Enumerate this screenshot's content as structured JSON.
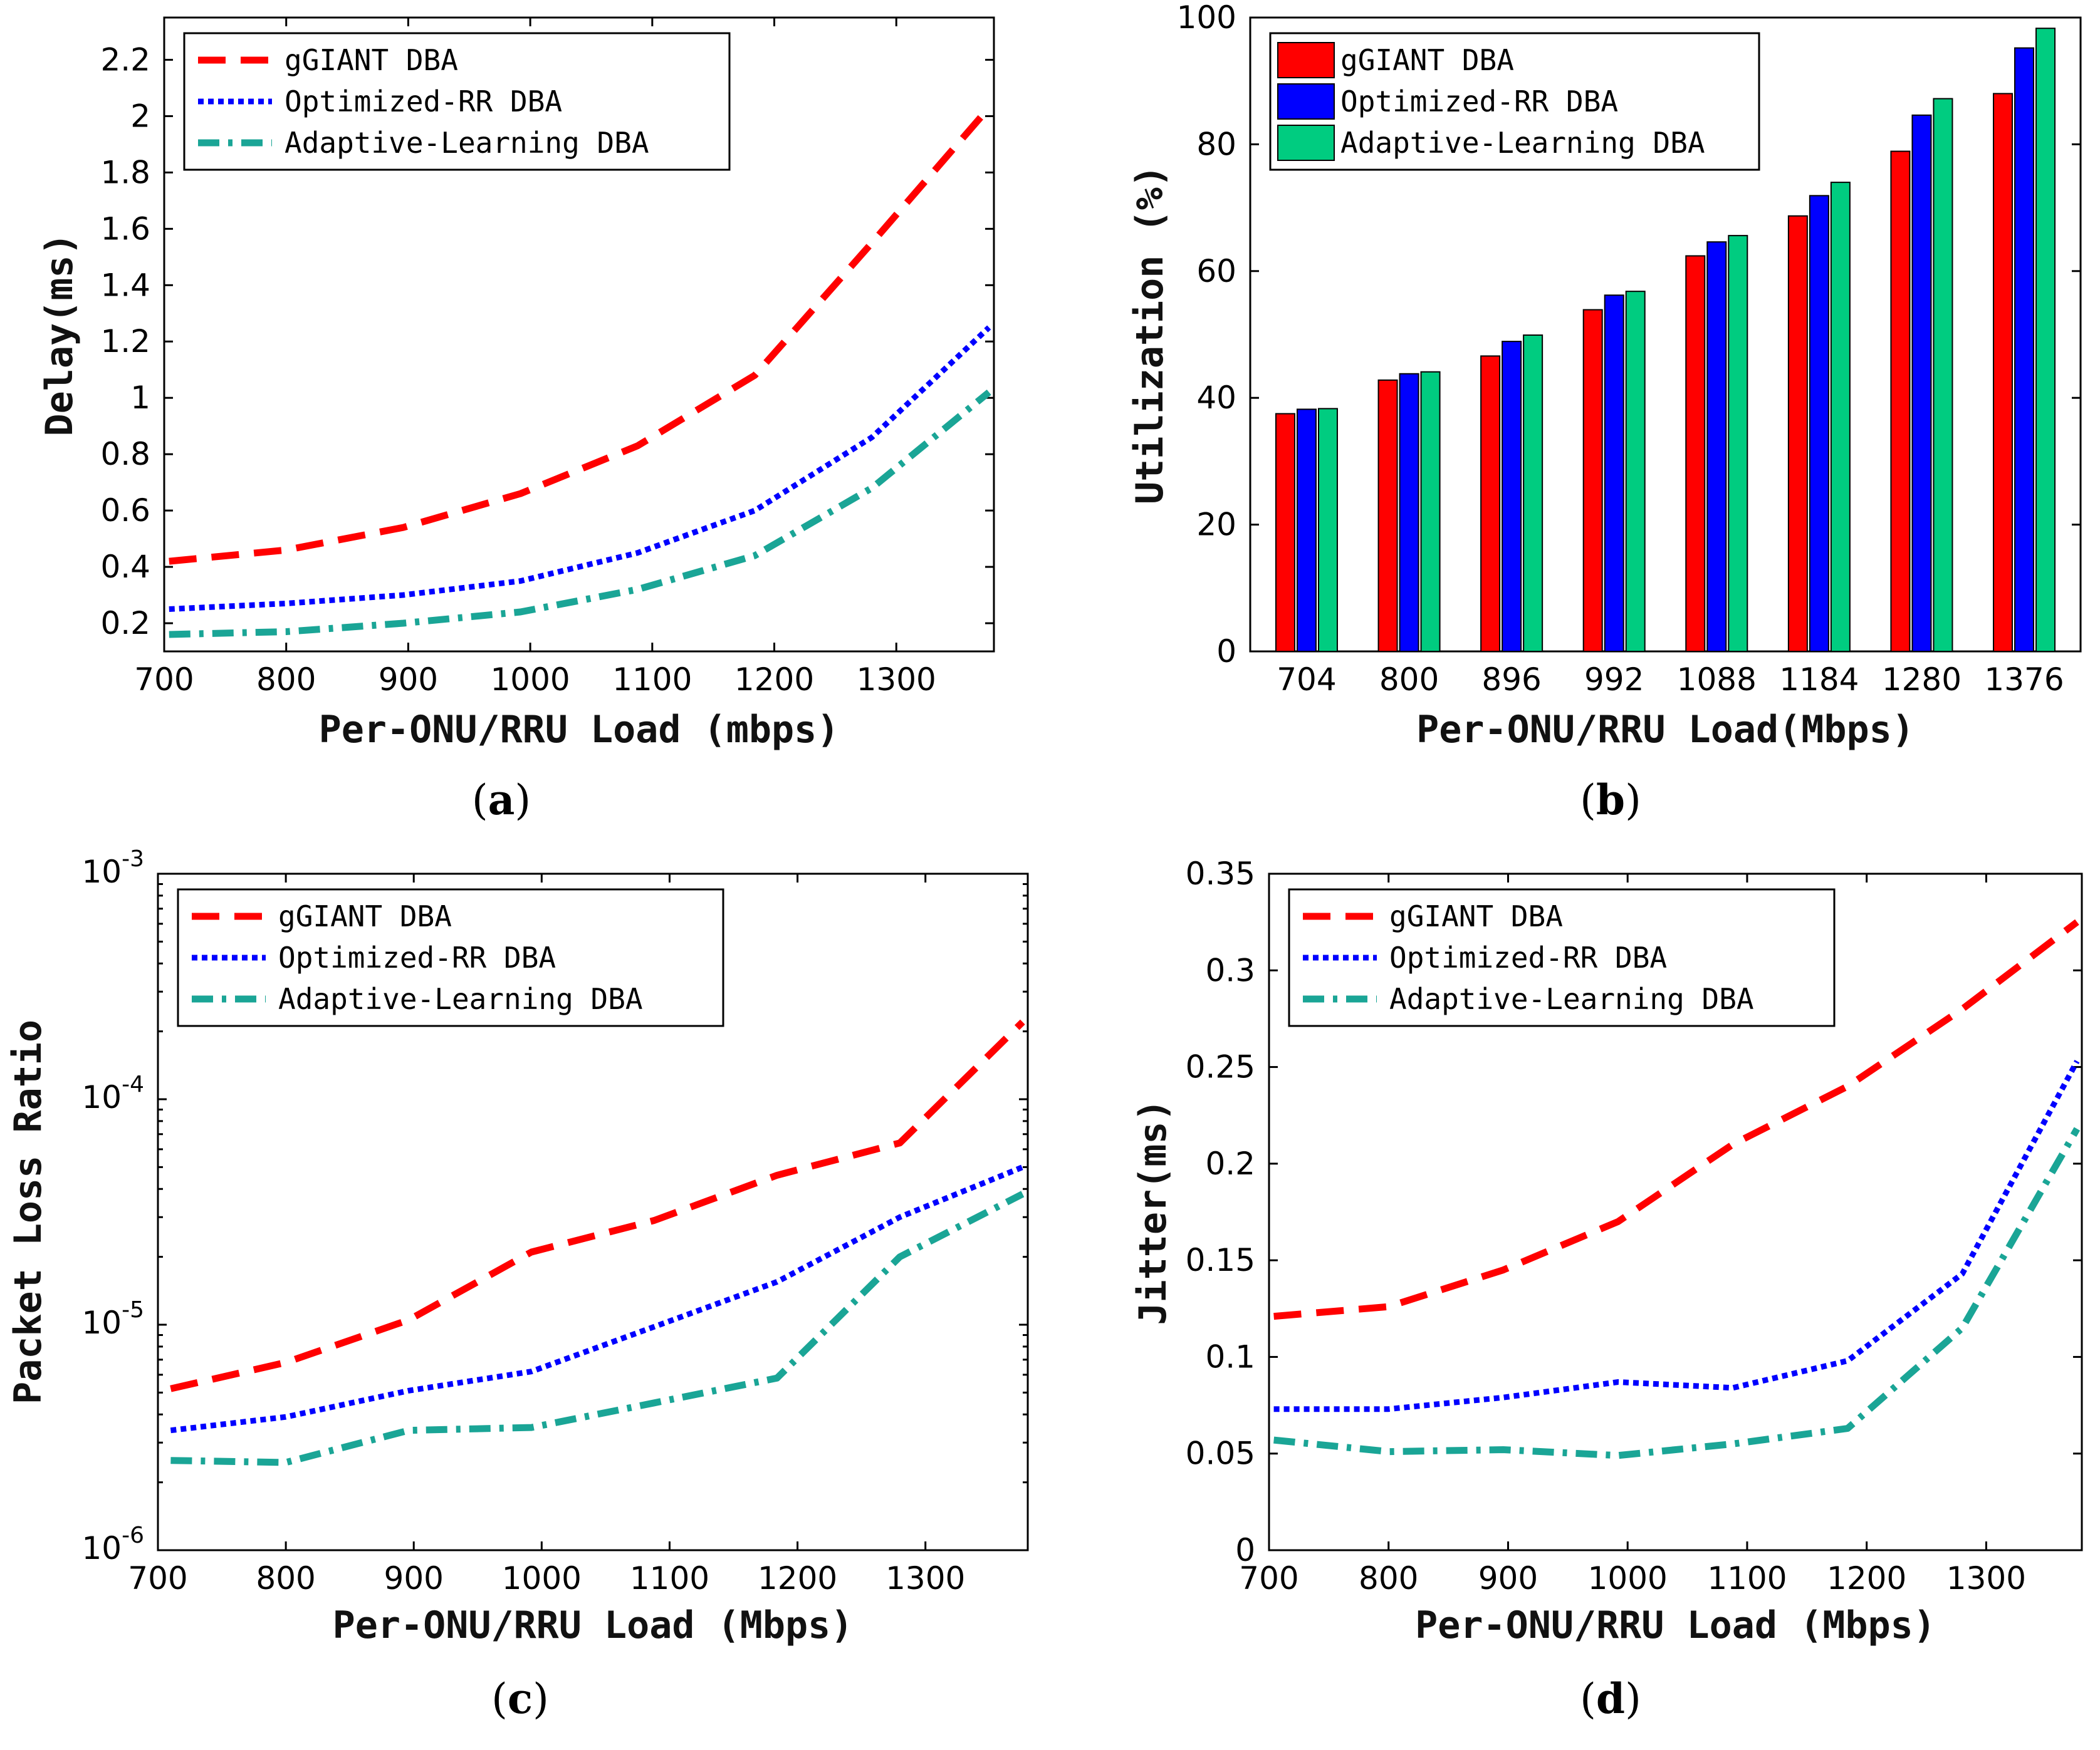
{
  "chart_data": [
    {
      "id": "a",
      "type": "line",
      "caption": "a",
      "xlabel": "Per-ONU/RRU Load (mbps)",
      "ylabel": "Delay(ms)",
      "xlim": [
        700,
        1380
      ],
      "ylim": [
        0.1,
        2.35
      ],
      "xticks": [
        700,
        800,
        900,
        1000,
        1100,
        1200,
        1300
      ],
      "yticks": [
        0.2,
        0.4,
        0.6,
        0.8,
        1,
        1.2,
        1.4,
        1.6,
        1.8,
        2,
        2.2
      ],
      "ytick_labels": [
        "0.2",
        "0.4",
        "0.6",
        "0.8",
        "1",
        "1.2",
        "1.4",
        "1.6",
        "1.8",
        "2",
        "2.2"
      ],
      "legend": "top-left",
      "x": [
        704,
        800,
        896,
        992,
        1088,
        1184,
        1280,
        1376
      ],
      "series": [
        {
          "name": "gGIANT DBA",
          "color": "#ff0000",
          "style": "dashed",
          "values": [
            0.42,
            0.46,
            0.54,
            0.66,
            0.83,
            1.08,
            1.55,
            2.03
          ]
        },
        {
          "name": "Optimized-RR DBA",
          "color": "#0000ff",
          "style": "dotted",
          "values": [
            0.25,
            0.27,
            0.3,
            0.35,
            0.45,
            0.6,
            0.86,
            1.25
          ]
        },
        {
          "name": "Adaptive-Learning DBA",
          "color": "#1aa596",
          "style": "dashdot",
          "values": [
            0.16,
            0.17,
            0.2,
            0.24,
            0.32,
            0.44,
            0.68,
            1.02
          ]
        }
      ]
    },
    {
      "id": "b",
      "type": "bar",
      "caption": "b",
      "xlabel": "Per-ONU/RRU Load(Mbps)",
      "ylabel": "Utilization (%)",
      "ylim": [
        0,
        100
      ],
      "yticks": [
        0,
        20,
        40,
        60,
        80,
        100
      ],
      "legend": "top-left",
      "categories": [
        "704",
        "800",
        "896",
        "992",
        "1088",
        "1184",
        "1280",
        "1376"
      ],
      "series": [
        {
          "name": "gGIANT DBA",
          "color": "#ff0000",
          "values": [
            37.5,
            42.8,
            46.6,
            53.9,
            62.4,
            68.7,
            78.9,
            88.0
          ]
        },
        {
          "name": "Optimized-RR DBA",
          "color": "#0000ff",
          "values": [
            38.2,
            43.8,
            48.9,
            56.2,
            64.6,
            71.9,
            84.6,
            95.2
          ]
        },
        {
          "name": "Adaptive-Learning DBA",
          "color": "#00cc80",
          "values": [
            38.3,
            44.1,
            49.9,
            56.8,
            65.6,
            74.0,
            87.2,
            98.3
          ]
        }
      ]
    },
    {
      "id": "c",
      "type": "line",
      "caption": "c",
      "xlabel": "Per-ONU/RRU Load (Mbps)",
      "ylabel": "Packet Loss Ratio",
      "yscale": "log",
      "xlim": [
        700,
        1380
      ],
      "ylim": [
        1e-06,
        0.001
      ],
      "xticks": [
        700,
        800,
        900,
        1000,
        1100,
        1200,
        1300
      ],
      "yticks": [
        1e-06,
        1e-05,
        0.0001,
        0.001
      ],
      "ytick_base": "10",
      "ytick_exponents": [
        "-6",
        "-5",
        "-4",
        "-3"
      ],
      "legend": "top-left",
      "x": [
        710,
        800,
        896,
        992,
        1088,
        1184,
        1280,
        1376
      ],
      "series": [
        {
          "name": "gGIANT DBA",
          "color": "#ff0000",
          "style": "dashed",
          "values": [
            5.2e-06,
            6.8e-06,
            1.05e-05,
            2.1e-05,
            2.9e-05,
            4.6e-05,
            6.4e-05,
            0.00022
          ]
        },
        {
          "name": "Optimized-RR DBA",
          "color": "#0000ff",
          "style": "dotted",
          "values": [
            3.4e-06,
            3.9e-06,
            5.1e-06,
            6.2e-06,
            9.8e-06,
            1.55e-05,
            3e-05,
            5e-05
          ]
        },
        {
          "name": "Adaptive-Learning DBA",
          "color": "#1aa596",
          "style": "dashdot",
          "values": [
            2.5e-06,
            2.45e-06,
            3.4e-06,
            3.5e-06,
            4.5e-06,
            5.8e-06,
            2e-05,
            3.8e-05
          ]
        }
      ]
    },
    {
      "id": "d",
      "type": "line",
      "caption": "d",
      "xlabel": "Per-ONU/RRU Load (Mbps)",
      "ylabel": "Jitter(ms)",
      "xlim": [
        700,
        1380
      ],
      "ylim": [
        0,
        0.35
      ],
      "xticks": [
        700,
        800,
        900,
        1000,
        1100,
        1200,
        1300
      ],
      "yticks": [
        0,
        0.05,
        0.1,
        0.15,
        0.2,
        0.25,
        0.3,
        0.35
      ],
      "ytick_labels": [
        "0",
        "0.05",
        "0.1",
        "0.15",
        "0.2",
        "0.25",
        "0.3",
        "0.35"
      ],
      "legend": "top-left",
      "x": [
        704,
        800,
        896,
        992,
        1088,
        1184,
        1280,
        1376
      ],
      "series": [
        {
          "name": "gGIANT DBA",
          "color": "#ff0000",
          "style": "dashed",
          "values": [
            0.121,
            0.126,
            0.145,
            0.17,
            0.21,
            0.24,
            0.28,
            0.325
          ]
        },
        {
          "name": "Optimized-RR DBA",
          "color": "#0000ff",
          "style": "dotted",
          "values": [
            0.073,
            0.073,
            0.079,
            0.087,
            0.084,
            0.098,
            0.143,
            0.253
          ]
        },
        {
          "name": "Adaptive-Learning DBA",
          "color": "#1aa596",
          "style": "dashdot",
          "values": [
            0.057,
            0.051,
            0.052,
            0.049,
            0.055,
            0.063,
            0.115,
            0.218
          ]
        }
      ]
    }
  ]
}
